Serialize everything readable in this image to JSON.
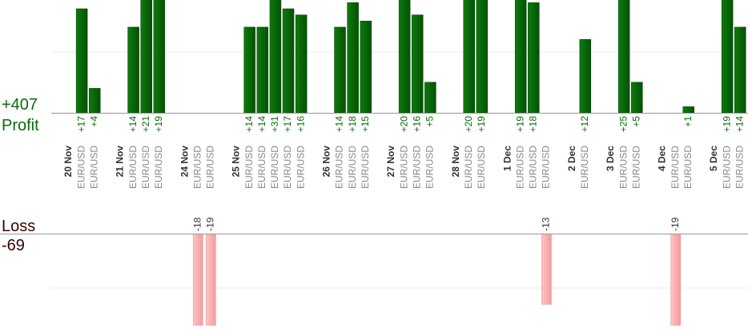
{
  "chart_data": {
    "type": "profit-loss-bars",
    "profit_total": "+407",
    "profit_label": "Profit",
    "loss_label": "Loss",
    "loss_total": -69,
    "groups": [
      {
        "date": "20 Nov",
        "trades": [
          {
            "symbol": "EUR/USD",
            "value": 17,
            "value_label": "+17"
          },
          {
            "symbol": "EUR/USD",
            "value": 4,
            "value_label": "+4"
          }
        ]
      },
      {
        "date": "21 Nov",
        "trades": [
          {
            "symbol": "EUR/USD",
            "value": 14,
            "value_label": "+14"
          },
          {
            "symbol": "EUR/USD",
            "value": 21,
            "value_label": "+21"
          },
          {
            "symbol": "EUR/USD",
            "value": 19,
            "value_label": "+19"
          }
        ]
      },
      {
        "date": "24 Nov",
        "trades": [
          {
            "symbol": "EUR/USD",
            "value": -18
          },
          {
            "symbol": "EUR/USD",
            "value": -19
          }
        ]
      },
      {
        "date": "25 Nov",
        "trades": [
          {
            "symbol": "EUR/USD",
            "value": 14,
            "value_label": "+14"
          },
          {
            "symbol": "EUR/USD",
            "value": 14,
            "value_label": "+14"
          },
          {
            "symbol": "EUR/USD",
            "value": 31,
            "value_label": "+31"
          },
          {
            "symbol": "EUR/USD",
            "value": 17,
            "value_label": "+17"
          },
          {
            "symbol": "EUR/USD",
            "value": 16,
            "value_label": "+16"
          }
        ]
      },
      {
        "date": "26 Nov",
        "trades": [
          {
            "symbol": "EUR/USD",
            "value": 14,
            "value_label": "+14"
          },
          {
            "symbol": "EUR/USD",
            "value": 18,
            "value_label": "+18"
          },
          {
            "symbol": "EUR/USD",
            "value": 15,
            "value_label": "+15"
          }
        ]
      },
      {
        "date": "27 Nov",
        "trades": [
          {
            "symbol": "EUR/USD",
            "value": 20,
            "value_label": "+20"
          },
          {
            "symbol": "EUR/USD",
            "value": 16,
            "value_label": "+16"
          },
          {
            "symbol": "EUR/USD",
            "value": 5,
            "value_label": "+5"
          }
        ]
      },
      {
        "date": "28 Nov",
        "trades": [
          {
            "symbol": "EUR/USD",
            "value": 20,
            "value_label": "+20"
          },
          {
            "symbol": "EUR/USD",
            "value": 19,
            "value_label": "+19"
          }
        ]
      },
      {
        "date": "1 Dec",
        "trades": [
          {
            "symbol": "EUR/USD",
            "value": 19,
            "value_label": "+19"
          },
          {
            "symbol": "EUR/USD",
            "value": 18,
            "value_label": "+18"
          },
          {
            "symbol": "EUR/USD",
            "value": -13
          }
        ]
      },
      {
        "date": "2 Dec",
        "trades": [
          {
            "symbol": "EUR/USD",
            "value": 12,
            "value_label": "+12"
          }
        ]
      },
      {
        "date": "3 Dec",
        "trades": [
          {
            "symbol": "EUR/USD",
            "value": 25,
            "value_label": "+25"
          },
          {
            "symbol": "EUR/USD",
            "value": 5,
            "value_label": "+5"
          }
        ]
      },
      {
        "date": "4 Dec",
        "trades": [
          {
            "symbol": "EUR/USD",
            "value": -19
          },
          {
            "symbol": "EUR/USD",
            "value": 1,
            "value_label": "+1"
          }
        ]
      },
      {
        "date": "5 Dec",
        "trades": [
          {
            "symbol": "EUR/USD",
            "value": 19,
            "value_label": "+19"
          },
          {
            "symbol": "EUR/USD",
            "value": 14,
            "value_label": "+14"
          }
        ]
      }
    ]
  }
}
